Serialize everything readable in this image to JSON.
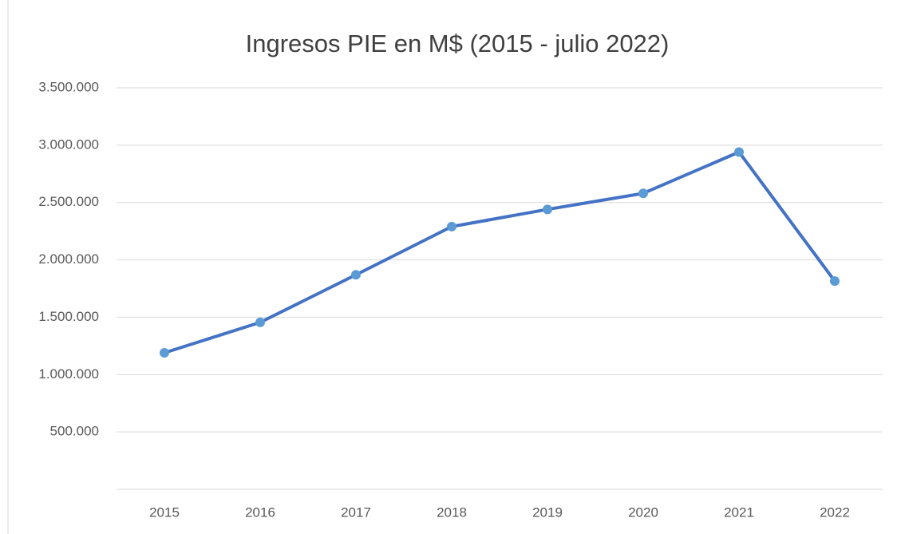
{
  "chart_data": {
    "type": "line",
    "title": "Ingresos PIE en M$ (2015 - julio 2022)",
    "categories": [
      "2015",
      "2016",
      "2017",
      "2018",
      "2019",
      "2020",
      "2021",
      "2022"
    ],
    "series": [
      {
        "name": "Ingresos PIE",
        "color": "#4472c4",
        "marker_color": "#5b9bd5",
        "values": [
          1190000,
          1455000,
          1870000,
          2290000,
          2440000,
          2580000,
          2940000,
          1815000
        ]
      }
    ],
    "ylim": [
      0,
      3500000
    ],
    "yticks": [
      {
        "value": 500000,
        "label": "500.000"
      },
      {
        "value": 1000000,
        "label": "1.000.000"
      },
      {
        "value": 1500000,
        "label": "1.500.000"
      },
      {
        "value": 2000000,
        "label": "2.000.000"
      },
      {
        "value": 2500000,
        "label": "2.500.000"
      },
      {
        "value": 3000000,
        "label": "3.000.000"
      },
      {
        "value": 3500000,
        "label": "3.500.000"
      }
    ],
    "grid": true,
    "legend": false
  }
}
